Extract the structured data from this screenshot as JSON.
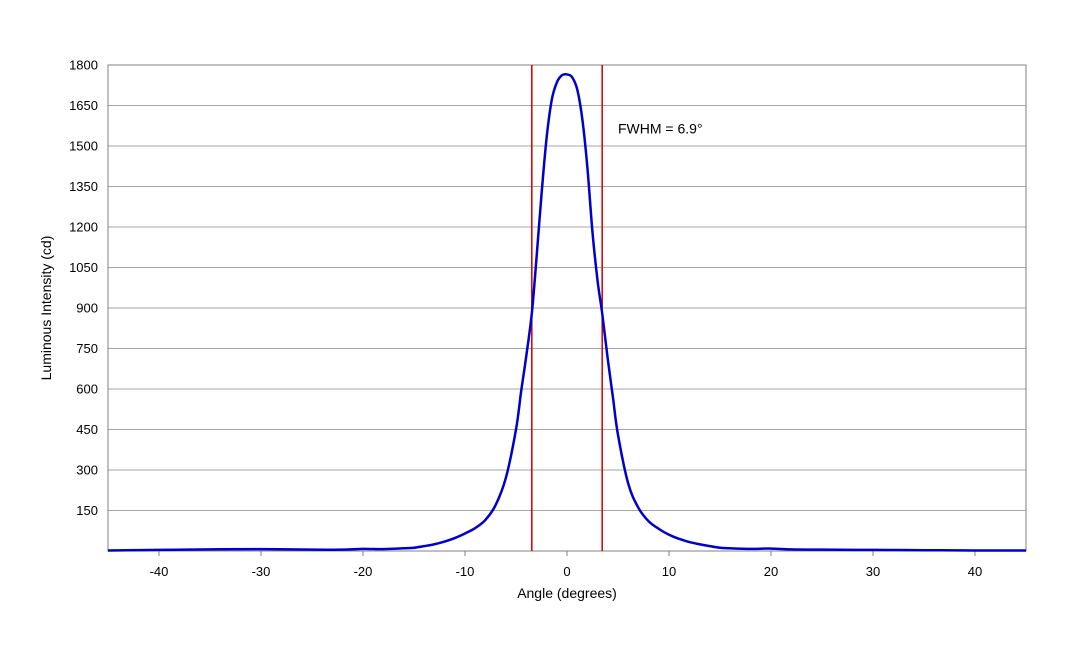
{
  "chart_data": {
    "type": "line",
    "title": "",
    "xlabel": "Angle (degrees)",
    "ylabel": "Luminous Intensity (cd)",
    "xlim": [
      -45,
      45
    ],
    "ylim": [
      0,
      1800
    ],
    "x_ticks": [
      -40,
      -30,
      -20,
      -10,
      0,
      10,
      20,
      30,
      40
    ],
    "y_ticks": [
      150,
      300,
      450,
      600,
      750,
      900,
      1050,
      1200,
      1350,
      1500,
      1650,
      1800
    ],
    "grid": "horizontal",
    "legend": "none",
    "series": [
      {
        "color": "#0000cc",
        "x": [
          -45,
          -40,
          -35,
          -30,
          -25,
          -22,
          -20,
          -18,
          -16,
          -15,
          -14,
          -13,
          -12,
          -11,
          -10,
          -9,
          -8,
          -7,
          -6,
          -5,
          -4.5,
          -4,
          -3.45,
          -3,
          -2.5,
          -2,
          -1.5,
          -1,
          -0.5,
          0,
          0.5,
          1,
          1.5,
          2,
          2.5,
          3,
          3.45,
          4,
          4.5,
          5,
          6,
          7,
          8,
          9,
          10,
          11,
          12,
          13,
          14,
          15,
          16,
          18,
          20,
          22,
          25,
          30,
          35,
          40,
          45
        ],
        "y": [
          2,
          4,
          6,
          7,
          5,
          5,
          8,
          7,
          10,
          12,
          18,
          25,
          35,
          48,
          65,
          85,
          115,
          170,
          270,
          450,
          590,
          720,
          880,
          1080,
          1320,
          1530,
          1670,
          1735,
          1762,
          1765,
          1755,
          1710,
          1600,
          1420,
          1180,
          1000,
          880,
          710,
          570,
          430,
          250,
          160,
          110,
          82,
          60,
          45,
          33,
          25,
          18,
          12,
          10,
          8,
          9,
          6,
          5,
          4,
          3,
          2,
          2
        ]
      }
    ],
    "reference_lines": [
      {
        "x": -3.45,
        "color": "#cc0000"
      },
      {
        "x": 3.45,
        "color": "#cc0000"
      }
    ],
    "annotations": [
      {
        "text": "FWHM = 6.9°",
        "x": 5,
        "y": 1565
      }
    ]
  }
}
